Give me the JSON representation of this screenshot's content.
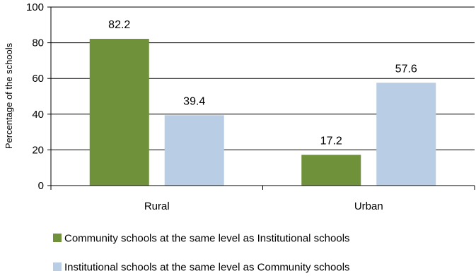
{
  "chart_data": {
    "type": "bar",
    "categories": [
      "Rural",
      "Urban"
    ],
    "series": [
      {
        "name": "Community schools at the same level as Institutional schools",
        "values": [
          82.2,
          17.2
        ],
        "color": "#6f9139"
      },
      {
        "name": "Institutional schools at the same level as Community schools",
        "values": [
          39.4,
          57.6
        ],
        "color": "#b9cde5"
      }
    ],
    "ylabel": "Percentage of the schools",
    "ylim": [
      0,
      100
    ],
    "yticks": [
      0,
      20,
      40,
      60,
      80,
      100
    ],
    "grid": true,
    "legend_position": "bottom"
  }
}
